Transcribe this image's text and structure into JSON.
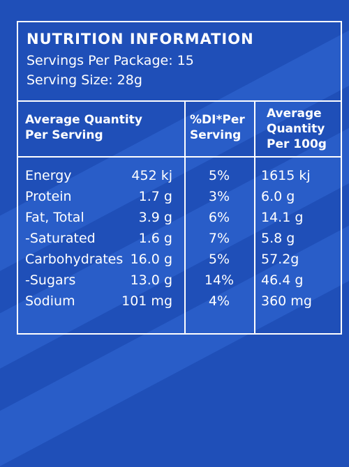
{
  "panel": {
    "title": "NUTRITION INFORMATION",
    "servings_per_package": "Servings Per Package: 15",
    "serving_size": "Serving Size: 28g"
  },
  "table": {
    "headers": {
      "avg_per_serving": [
        "Average Quantity",
        "Per Serving"
      ],
      "di_per_serving": [
        "%DI*Per",
        "Serving"
      ],
      "avg_per_100g": [
        "Average",
        "Quantity",
        "Per 100g"
      ]
    },
    "rows": [
      {
        "name": "Energy",
        "per_serving": "452 kj",
        "di": "5%",
        "per_100g": "1615 kj"
      },
      {
        "name": "Protein",
        "per_serving": "1.7 g",
        "di": "3%",
        "per_100g": "6.0 g"
      },
      {
        "name": "Fat, Total",
        "per_serving": "3.9 g",
        "di": "6%",
        "per_100g": "14.1 g"
      },
      {
        "name": "-Saturated",
        "per_serving": "1.6 g",
        "di": "7%",
        "per_100g": "5.8 g"
      },
      {
        "name": "Carbohydrates",
        "per_serving": "16.0 g",
        "di": "5%",
        "per_100g": "57.2g"
      },
      {
        "name": "-Sugars",
        "per_serving": "13.0 g",
        "di": "14%",
        "per_100g": "46.4 g"
      },
      {
        "name": "Sodium",
        "per_serving": "101 mg",
        "di": "4%",
        "per_100g": "360 mg"
      }
    ]
  },
  "colors": {
    "background": "#1f4fb8",
    "text": "#ffffff"
  }
}
